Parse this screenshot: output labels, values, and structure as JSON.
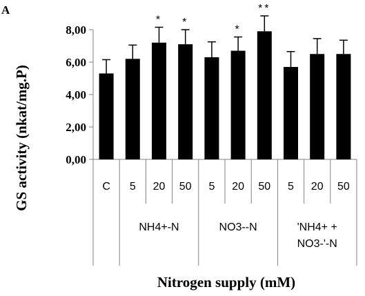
{
  "chart_data": {
    "type": "bar",
    "panel_label": "A",
    "ylabel": "GS activity (nkat/mg.P)",
    "xlabel": "Nitrogen supply (mM)",
    "ylim": [
      0,
      8
    ],
    "yticks": [
      "0,00",
      "2,00",
      "4,00",
      "6,00",
      "8,00"
    ],
    "categories": [
      "C",
      "5",
      "20",
      "50",
      "5",
      "20",
      "50",
      "5",
      "20",
      "50"
    ],
    "values": [
      5.3,
      6.2,
      7.2,
      7.1,
      6.3,
      6.7,
      7.9,
      5.7,
      6.5,
      6.5
    ],
    "errors": [
      0.85,
      0.85,
      0.95,
      0.9,
      0.95,
      0.85,
      0.95,
      0.95,
      0.95,
      0.85
    ],
    "significance": [
      "",
      "",
      "*",
      "*",
      "",
      "*",
      "**",
      "",
      "",
      ""
    ],
    "groups": [
      {
        "lines": [
          "NH4+-N"
        ],
        "start": 1,
        "end": 3
      },
      {
        "lines": [
          "NO3--N"
        ],
        "start": 4,
        "end": 6
      },
      {
        "lines": [
          "'NH4+ +",
          "NO3-'-N"
        ],
        "start": 7,
        "end": 9
      }
    ],
    "colors": {
      "bar": "#000000",
      "axis": "#808080"
    }
  }
}
